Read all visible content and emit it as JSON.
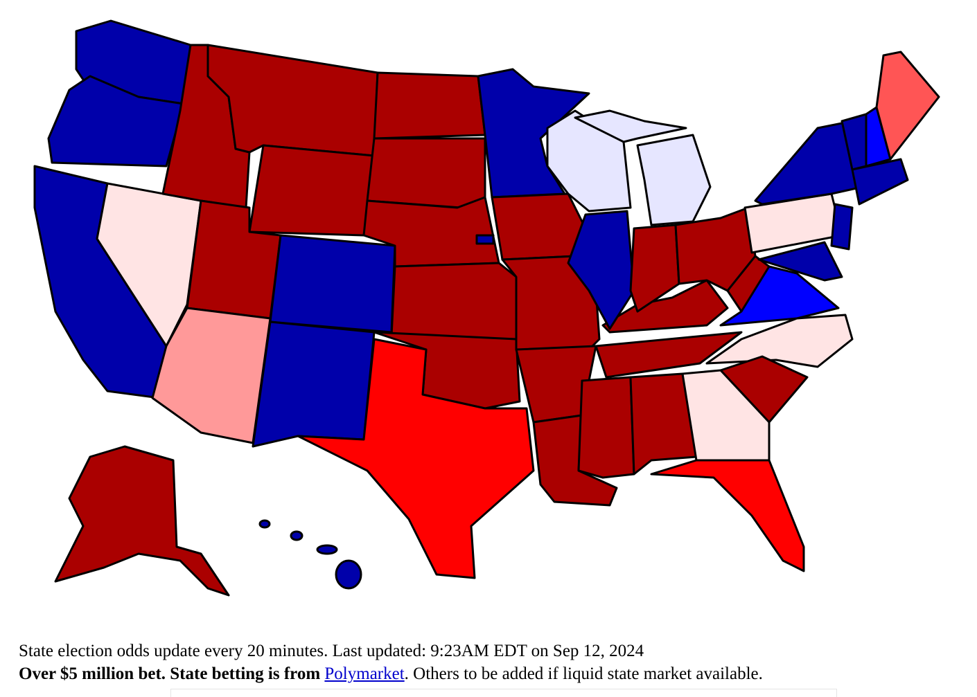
{
  "caption": {
    "line1": "State election odds update every 20 minutes. Last updated: 9:23AM EDT on Sep 12, 2024",
    "line2_bold": "Over $5 million bet. State betting is from ",
    "link": "Polymarket",
    "line2_rest": ". Others to be added if liquid state market available."
  }
}
